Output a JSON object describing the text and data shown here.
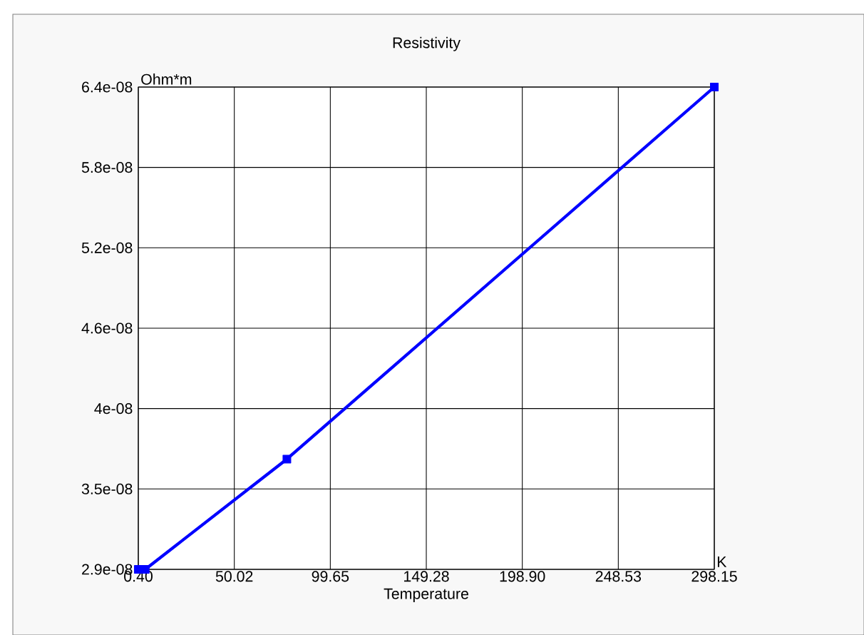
{
  "chart_data": {
    "type": "line",
    "title": "Resistivity",
    "xlabel": "Temperature",
    "ylabel": "Ohm*m",
    "annotations": [
      "K"
    ],
    "x": [
      0.4,
      4,
      77.2,
      298.15
    ],
    "series": [
      {
        "color": "#0000ff",
        "values": [
          2.9e-08,
          2.9e-08,
          3.7e-08,
          6.4e-08
        ]
      }
    ],
    "xlim": [
      0.4,
      298.15
    ],
    "xticks": [
      {
        "value": 0.4,
        "label": "0.40"
      },
      {
        "value": 50.025,
        "label": "50.02"
      },
      {
        "value": 99.65,
        "label": "99.65"
      },
      {
        "value": 149.275,
        "label": "149.28"
      },
      {
        "value": 198.9,
        "label": "198.90"
      },
      {
        "value": 248.525,
        "label": "248.53"
      },
      {
        "value": 298.15,
        "label": "298.15"
      }
    ],
    "ylim": [
      2.9e-08,
      6.4e-08
    ],
    "yticks": [
      {
        "value": 2.9e-08,
        "label": "2.9e-08"
      },
      {
        "value": 3.4833e-08,
        "label": "3.5e-08"
      },
      {
        "value": 4.0667e-08,
        "label": "4e-08"
      },
      {
        "value": 4.65e-08,
        "label": "4.6e-08"
      },
      {
        "value": 5.2333e-08,
        "label": "5.2e-08"
      },
      {
        "value": 5.8167e-08,
        "label": "5.8e-08"
      },
      {
        "value": 6.4e-08,
        "label": "6.4e-08"
      }
    ],
    "grid": true,
    "marker": "square",
    "line_style": "solid"
  }
}
